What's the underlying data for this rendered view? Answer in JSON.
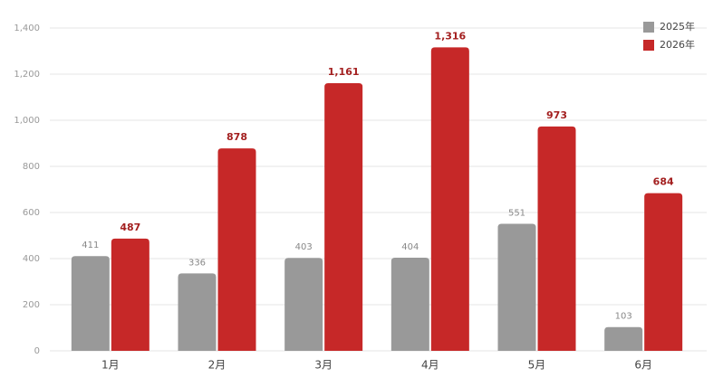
{
  "chart_data": {
    "type": "bar",
    "categories": [
      "1月",
      "2月",
      "3月",
      "4月",
      "5月",
      "6月"
    ],
    "series": [
      {
        "name": "2025年",
        "color": "#999999",
        "values": [
          411,
          336,
          403,
          404,
          551,
          103
        ]
      },
      {
        "name": "2026年",
        "color": "#c62828",
        "values": [
          487,
          878,
          1161,
          1316,
          973,
          684
        ],
        "value_labels": [
          "487",
          "878",
          "1,161",
          "1,316",
          "973",
          "684"
        ]
      }
    ],
    "ylim": [
      0,
      1400
    ],
    "yticks": [
      0,
      200,
      400,
      600,
      800,
      {
        "value": 1000,
        "label": "1,000"
      },
      {
        "value": 1200,
        "label": "1,200"
      },
      {
        "value": 1400,
        "label": "1,400"
      }
    ],
    "grid": true,
    "legend": "top-right"
  }
}
